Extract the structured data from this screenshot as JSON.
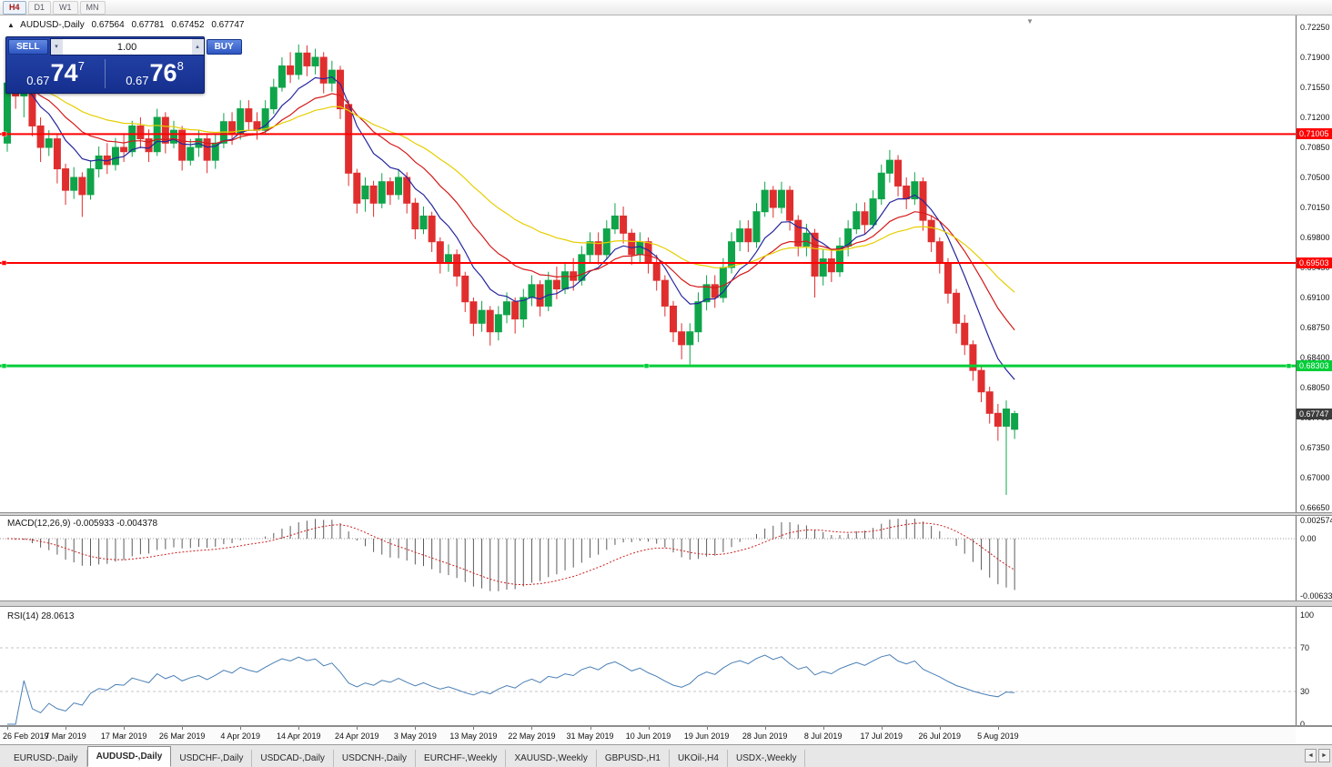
{
  "toolbar": {
    "buttons": [
      {
        "label": "H4",
        "active": true
      },
      {
        "label": "D1",
        "active": false
      },
      {
        "label": "W1",
        "active": false
      },
      {
        "label": "MN",
        "active": false
      }
    ]
  },
  "icons": {
    "one_click_toggle": "▲",
    "volume_up": "▴",
    "volume_down": "▾",
    "tab_scroll_left": "◄",
    "tab_scroll_right": "►",
    "chart_shift_marker": "▼"
  },
  "symbol_header": {
    "symbol": "AUDUSD-,Daily",
    "open": "0.67564",
    "high": "0.67781",
    "low": "0.67452",
    "close": "0.67747"
  },
  "trade_panel": {
    "sell_label": "SELL",
    "buy_label": "BUY",
    "volume": "1.00",
    "sell_price": {
      "main": "0.67",
      "big": "74",
      "sup": "7"
    },
    "buy_price": {
      "main": "0.67",
      "big": "76",
      "sup": "8"
    }
  },
  "price_levels": [
    {
      "label": "0.71005",
      "value": 0.71005,
      "color": "#ff0000",
      "width": 2
    },
    {
      "label": "0.69503",
      "value": 0.69503,
      "color": "#ff0000",
      "width": 2
    },
    {
      "label": "0.68303",
      "value": 0.68303,
      "color": "#00ce38",
      "width": 3
    }
  ],
  "current_price_tag": {
    "label": "0.67747",
    "value": 0.67747,
    "color": "#3c3c3c"
  },
  "macd_panel": {
    "label": "MACD(12,26,9) -0.005933 -0.004378",
    "axis_ticks": [
      {
        "label": "0.002574",
        "value": 0.002574
      },
      {
        "label": "0.00",
        "value": 0
      },
      {
        "label": "-0.006338",
        "value": -0.006338
      }
    ]
  },
  "rsi_panel": {
    "label": "RSI(14) 28.0613",
    "axis_ticks": [
      {
        "label": "100",
        "value": 100
      },
      {
        "label": "70",
        "value": 70
      },
      {
        "label": "30",
        "value": 30
      },
      {
        "label": "0",
        "value": 0
      }
    ],
    "levels": [
      70,
      30
    ]
  },
  "bottom_tabs": {
    "tabs": [
      {
        "label": "EURUSD-,Daily",
        "active": false
      },
      {
        "label": "AUDUSD-,Daily",
        "active": true
      },
      {
        "label": "USDCHF-,Daily",
        "active": false
      },
      {
        "label": "USDCAD-,Daily",
        "active": false
      },
      {
        "label": "USDCNH-,Daily",
        "active": false
      },
      {
        "label": "EURCHF-,Weekly",
        "active": false
      },
      {
        "label": "XAUUSD-,Weekly",
        "active": false
      },
      {
        "label": "GBPUSD-,H1",
        "active": false
      },
      {
        "label": "UKOil-,H4",
        "active": false
      },
      {
        "label": "USDX-,Weekly",
        "active": false
      }
    ]
  },
  "chart_data": {
    "type": "candlestick",
    "symbol": "AUDUSD",
    "period": "Daily",
    "current_bar": {
      "open": 0.67564,
      "high": 0.67781,
      "low": 0.67452,
      "close": 0.67747
    },
    "bid": 0.67747,
    "y_tick_labels": [
      "0.72250",
      "0.71900",
      "0.71550",
      "0.71200",
      "0.70850",
      "0.70500",
      "0.70150",
      "0.69800",
      "0.69450",
      "0.69100",
      "0.68750",
      "0.68400",
      "0.68050",
      "0.67700",
      "0.67350",
      "0.67000",
      "0.66650"
    ],
    "x_tick_labels": [
      "26 Feb 2019",
      "7 Mar 2019",
      "17 Mar 2019",
      "26 Mar 2019",
      "4 Apr 2019",
      "14 Apr 2019",
      "24 Apr 2019",
      "3 May 2019",
      "13 May 2019",
      "22 May 2019",
      "31 May 2019",
      "10 Jun 2019",
      "19 Jun 2019",
      "28 Jun 2019",
      "8 Jul 2019",
      "17 Jul 2019",
      "26 Jul 2019",
      "5 Aug 2019"
    ],
    "ylim": [
      0.6665,
      0.7225
    ],
    "candle_colors": {
      "up": "#0fa44a",
      "down": "#e02e2e"
    },
    "moving_averages": [
      {
        "period": 8,
        "color": "#26269e"
      },
      {
        "period": 17,
        "color": "#d41a1a"
      },
      {
        "period": 34,
        "color": "#e6ce00"
      }
    ],
    "horizontal_lines": [
      0.71005,
      0.69503,
      0.68303
    ],
    "indicators": [
      {
        "type": "MACD",
        "fast": 12,
        "slow": 26,
        "signal": 9,
        "last_main": -0.005933,
        "last_signal": -0.004378,
        "histogram_color": "#5c5c5c",
        "signal_color": "#cc2020"
      },
      {
        "type": "RSI",
        "period": 14,
        "last": 28.0613,
        "line_color": "#4a7fb5"
      }
    ],
    "ohlc": [
      [
        0.709,
        0.7165,
        0.708,
        0.716
      ],
      [
        0.716,
        0.717,
        0.713,
        0.7145
      ],
      [
        0.7145,
        0.7162,
        0.712,
        0.7155
      ],
      [
        0.7155,
        0.716,
        0.7098,
        0.711
      ],
      [
        0.711,
        0.712,
        0.7068,
        0.7085
      ],
      [
        0.7085,
        0.7105,
        0.7075,
        0.7095
      ],
      [
        0.7095,
        0.71,
        0.7043,
        0.706
      ],
      [
        0.706,
        0.7066,
        0.7018,
        0.7035
      ],
      [
        0.7035,
        0.7062,
        0.7025,
        0.705
      ],
      [
        0.705,
        0.7056,
        0.7004,
        0.703
      ],
      [
        0.703,
        0.707,
        0.7024,
        0.706
      ],
      [
        0.706,
        0.7086,
        0.705,
        0.7075
      ],
      [
        0.7075,
        0.709,
        0.7054,
        0.7065
      ],
      [
        0.7065,
        0.7096,
        0.7058,
        0.7085
      ],
      [
        0.7085,
        0.71,
        0.7068,
        0.708
      ],
      [
        0.708,
        0.7116,
        0.7074,
        0.711
      ],
      [
        0.711,
        0.712,
        0.7084,
        0.7095
      ],
      [
        0.7095,
        0.7106,
        0.7068,
        0.708
      ],
      [
        0.708,
        0.713,
        0.7075,
        0.712
      ],
      [
        0.712,
        0.7126,
        0.7078,
        0.709
      ],
      [
        0.709,
        0.7116,
        0.7084,
        0.7105
      ],
      [
        0.7105,
        0.711,
        0.7058,
        0.707
      ],
      [
        0.707,
        0.7095,
        0.7064,
        0.7085
      ],
      [
        0.7085,
        0.7105,
        0.7074,
        0.7095
      ],
      [
        0.7095,
        0.71,
        0.7055,
        0.707
      ],
      [
        0.707,
        0.71,
        0.706,
        0.709
      ],
      [
        0.709,
        0.7125,
        0.7084,
        0.7115
      ],
      [
        0.7115,
        0.7126,
        0.7088,
        0.71
      ],
      [
        0.71,
        0.714,
        0.7094,
        0.713
      ],
      [
        0.713,
        0.714,
        0.7104,
        0.7115
      ],
      [
        0.7115,
        0.7126,
        0.7094,
        0.7105
      ],
      [
        0.7105,
        0.714,
        0.71,
        0.713
      ],
      [
        0.713,
        0.7165,
        0.7124,
        0.7155
      ],
      [
        0.7155,
        0.719,
        0.715,
        0.718
      ],
      [
        0.718,
        0.7196,
        0.716,
        0.717
      ],
      [
        0.717,
        0.7205,
        0.7164,
        0.7195
      ],
      [
        0.7195,
        0.7204,
        0.7168,
        0.718
      ],
      [
        0.718,
        0.72,
        0.717,
        0.719
      ],
      [
        0.719,
        0.7196,
        0.7148,
        0.716
      ],
      [
        0.716,
        0.7186,
        0.715,
        0.7175
      ],
      [
        0.7175,
        0.718,
        0.7118,
        0.713
      ],
      [
        0.7135,
        0.714,
        0.704,
        0.7055
      ],
      [
        0.7055,
        0.706,
        0.7008,
        0.702
      ],
      [
        0.7025,
        0.705,
        0.701,
        0.704
      ],
      [
        0.704,
        0.7046,
        0.7004,
        0.702
      ],
      [
        0.702,
        0.7055,
        0.7014,
        0.7045
      ],
      [
        0.7045,
        0.705,
        0.7018,
        0.703
      ],
      [
        0.703,
        0.706,
        0.7024,
        0.705
      ],
      [
        0.705,
        0.7056,
        0.7008,
        0.702
      ],
      [
        0.702,
        0.7026,
        0.6978,
        0.699
      ],
      [
        0.699,
        0.7016,
        0.6984,
        0.7005
      ],
      [
        0.7005,
        0.701,
        0.6963,
        0.6975
      ],
      [
        0.6975,
        0.698,
        0.6938,
        0.695
      ],
      [
        0.695,
        0.6972,
        0.694,
        0.696
      ],
      [
        0.696,
        0.6966,
        0.6923,
        0.6935
      ],
      [
        0.6935,
        0.694,
        0.6893,
        0.6905
      ],
      [
        0.6905,
        0.691,
        0.6865,
        0.688
      ],
      [
        0.688,
        0.6906,
        0.687,
        0.6895
      ],
      [
        0.6895,
        0.69,
        0.6854,
        0.687
      ],
      [
        0.687,
        0.69,
        0.686,
        0.689
      ],
      [
        0.689,
        0.6916,
        0.688,
        0.6905
      ],
      [
        0.6905,
        0.691,
        0.6868,
        0.6885
      ],
      [
        0.6885,
        0.692,
        0.6875,
        0.691
      ],
      [
        0.691,
        0.6936,
        0.69,
        0.6925
      ],
      [
        0.6925,
        0.693,
        0.6888,
        0.69
      ],
      [
        0.69,
        0.694,
        0.6894,
        0.693
      ],
      [
        0.693,
        0.6946,
        0.6908,
        0.692
      ],
      [
        0.692,
        0.695,
        0.6914,
        0.694
      ],
      [
        0.694,
        0.6956,
        0.6918,
        0.693
      ],
      [
        0.693,
        0.697,
        0.6924,
        0.696
      ],
      [
        0.696,
        0.6986,
        0.695,
        0.6975
      ],
      [
        0.6975,
        0.6986,
        0.6948,
        0.696
      ],
      [
        0.696,
        0.7,
        0.6954,
        0.699
      ],
      [
        0.699,
        0.702,
        0.6984,
        0.7005
      ],
      [
        0.7005,
        0.7016,
        0.6973,
        0.6985
      ],
      [
        0.6985,
        0.699,
        0.6948,
        0.696
      ],
      [
        0.696,
        0.6986,
        0.695,
        0.6975
      ],
      [
        0.6975,
        0.698,
        0.6938,
        0.695
      ],
      [
        0.695,
        0.696,
        0.6918,
        0.693
      ],
      [
        0.693,
        0.6936,
        0.6888,
        0.69
      ],
      [
        0.69,
        0.6906,
        0.6858,
        0.687
      ],
      [
        0.687,
        0.688,
        0.6838,
        0.6855
      ],
      [
        0.6855,
        0.688,
        0.6832,
        0.687
      ],
      [
        0.687,
        0.6916,
        0.6858,
        0.6905
      ],
      [
        0.6905,
        0.6936,
        0.6895,
        0.6925
      ],
      [
        0.6925,
        0.6936,
        0.6898,
        0.691
      ],
      [
        0.691,
        0.6956,
        0.6904,
        0.6945
      ],
      [
        0.6945,
        0.6986,
        0.6938,
        0.6975
      ],
      [
        0.6975,
        0.7,
        0.6964,
        0.699
      ],
      [
        0.699,
        0.7,
        0.6963,
        0.6975
      ],
      [
        0.6975,
        0.702,
        0.6968,
        0.701
      ],
      [
        0.701,
        0.7045,
        0.7004,
        0.7035
      ],
      [
        0.7035,
        0.704,
        0.7003,
        0.7015
      ],
      [
        0.7015,
        0.7045,
        0.7008,
        0.7035
      ],
      [
        0.7035,
        0.704,
        0.6988,
        0.7
      ],
      [
        0.7,
        0.7006,
        0.6958,
        0.697
      ],
      [
        0.697,
        0.6996,
        0.6958,
        0.6985
      ],
      [
        0.6985,
        0.699,
        0.691,
        0.6935
      ],
      [
        0.6935,
        0.6966,
        0.6924,
        0.6955
      ],
      [
        0.6955,
        0.6966,
        0.6928,
        0.694
      ],
      [
        0.694,
        0.698,
        0.6934,
        0.697
      ],
      [
        0.697,
        0.7,
        0.6958,
        0.699
      ],
      [
        0.699,
        0.702,
        0.6984,
        0.701
      ],
      [
        0.701,
        0.7021,
        0.6984,
        0.6995
      ],
      [
        0.6995,
        0.7035,
        0.699,
        0.7025
      ],
      [
        0.7025,
        0.7065,
        0.7018,
        0.7055
      ],
      [
        0.7055,
        0.7082,
        0.7044,
        0.707
      ],
      [
        0.707,
        0.7076,
        0.7028,
        0.704
      ],
      [
        0.704,
        0.705,
        0.7013,
        0.7025
      ],
      [
        0.7025,
        0.7056,
        0.7018,
        0.7045
      ],
      [
        0.7045,
        0.705,
        0.6988,
        0.7
      ],
      [
        0.7,
        0.7006,
        0.6963,
        0.6975
      ],
      [
        0.6975,
        0.698,
        0.6938,
        0.695
      ],
      [
        0.695,
        0.6956,
        0.6903,
        0.6915
      ],
      [
        0.6915,
        0.692,
        0.6868,
        0.688
      ],
      [
        0.688,
        0.689,
        0.6843,
        0.6855
      ],
      [
        0.6855,
        0.686,
        0.6813,
        0.6825
      ],
      [
        0.6825,
        0.683,
        0.6788,
        0.68
      ],
      [
        0.68,
        0.6806,
        0.6763,
        0.6775
      ],
      [
        0.6775,
        0.6786,
        0.6743,
        0.676
      ],
      [
        0.676,
        0.679,
        0.668,
        0.678
      ],
      [
        0.67564,
        0.67781,
        0.67452,
        0.67747
      ]
    ]
  }
}
